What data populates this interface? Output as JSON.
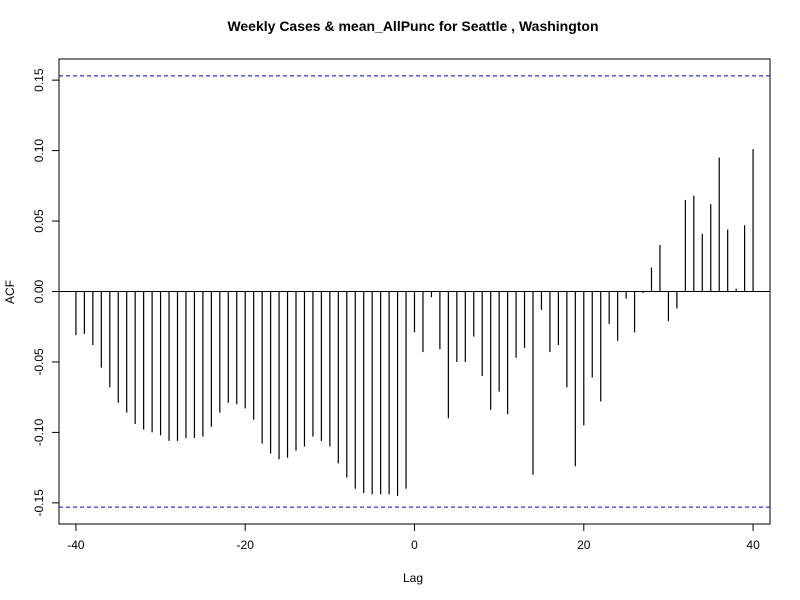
{
  "chart_data": {
    "type": "bar",
    "title": "Weekly Cases & mean_AllPunc for Seattle , Washington",
    "xlabel": "Lag",
    "ylabel": "ACF",
    "xlim": [
      -42,
      42
    ],
    "ylim": [
      -0.165,
      0.165
    ],
    "x_ticks": [
      -40,
      -20,
      0,
      20,
      40
    ],
    "x_tick_labels": [
      "-40",
      "-20",
      "0",
      "20",
      "40"
    ],
    "y_ticks": [
      -0.15,
      -0.1,
      -0.05,
      0.0,
      0.05,
      0.1,
      0.15
    ],
    "y_tick_labels": [
      "-0.15",
      "-0.10",
      "-0.05",
      "0.00",
      "0.05",
      "0.10",
      "0.15"
    ],
    "confidence_bound": 0.153,
    "confidence_color": "#0000cc",
    "bar_color": "#000000",
    "grid": false,
    "x": [
      -40,
      -39,
      -38,
      -37,
      -36,
      -35,
      -34,
      -33,
      -32,
      -31,
      -30,
      -29,
      -28,
      -27,
      -26,
      -25,
      -24,
      -23,
      -22,
      -21,
      -20,
      -19,
      -18,
      -17,
      -16,
      -15,
      -14,
      -13,
      -12,
      -11,
      -10,
      -9,
      -8,
      -7,
      -6,
      -5,
      -4,
      -3,
      -2,
      -1,
      0,
      1,
      2,
      3,
      4,
      5,
      6,
      7,
      8,
      9,
      10,
      11,
      12,
      13,
      14,
      15,
      16,
      17,
      18,
      19,
      20,
      21,
      22,
      23,
      24,
      25,
      26,
      27,
      28,
      29,
      30,
      31,
      32,
      33,
      34,
      35,
      36,
      37,
      38,
      39,
      40
    ],
    "values": [
      -0.031,
      -0.03,
      -0.038,
      -0.054,
      -0.068,
      -0.079,
      -0.086,
      -0.094,
      -0.098,
      -0.1,
      -0.102,
      -0.106,
      -0.106,
      -0.104,
      -0.104,
      -0.103,
      -0.096,
      -0.086,
      -0.079,
      -0.08,
      -0.083,
      -0.091,
      -0.108,
      -0.115,
      -0.119,
      -0.118,
      -0.113,
      -0.11,
      -0.103,
      -0.106,
      -0.11,
      -0.122,
      -0.132,
      -0.14,
      -0.143,
      -0.144,
      -0.144,
      -0.144,
      -0.145,
      -0.14,
      -0.029,
      -0.043,
      -0.004,
      -0.041,
      -0.09,
      -0.05,
      -0.05,
      -0.032,
      -0.06,
      -0.084,
      -0.071,
      -0.087,
      -0.047,
      -0.04,
      -0.13,
      -0.013,
      -0.043,
      -0.038,
      -0.068,
      -0.124,
      -0.095,
      -0.061,
      -0.078,
      -0.023,
      -0.035,
      -0.005,
      -0.029,
      -0.001,
      0.017,
      0.033,
      -0.021,
      -0.012,
      0.065,
      0.068,
      0.041,
      0.062,
      0.095,
      0.044,
      0.002,
      0.047,
      0.101
    ]
  }
}
